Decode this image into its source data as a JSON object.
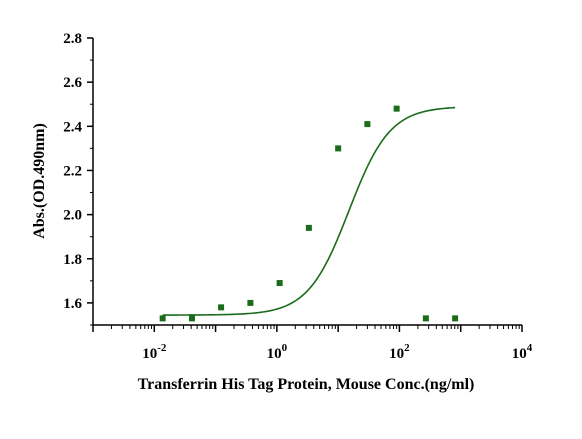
{
  "chart_data": {
    "type": "scatter",
    "xlabel": "Transferrin His Tag Protein, Mouse Conc.(ng/ml)",
    "ylabel": "Abs.(OD.490nm)",
    "x_scale": "log",
    "xlim": [
      0.001,
      10000
    ],
    "ylim": [
      1.5,
      2.8
    ],
    "x_ticks": [
      {
        "base": "10",
        "exp": "-2",
        "value": 0.01
      },
      {
        "base": "10",
        "exp": "0",
        "value": 1
      },
      {
        "base": "10",
        "exp": "2",
        "value": 100
      },
      {
        "base": "10",
        "exp": "4",
        "value": 10000
      }
    ],
    "y_ticks": [
      "1.6",
      "1.8",
      "2.0",
      "2.2",
      "2.4",
      "2.6",
      "2.8"
    ],
    "grid": false,
    "legend": "none",
    "color": "#1a6b1a",
    "series": [
      {
        "x": [
          0.0137,
          0.0412,
          0.123,
          0.37,
          1.11,
          3.33,
          10.0,
          30.0,
          90.0,
          270.0,
          810.0
        ],
        "y": [
          1.53,
          1.53,
          1.58,
          1.6,
          1.69,
          1.94,
          2.3,
          2.41,
          2.48,
          1.53,
          1.53
        ]
      }
    ],
    "fit": {
      "type": "4PL",
      "bottom": 1.545,
      "top": 2.49,
      "ec50": 15.0,
      "hill": 1.3
    }
  }
}
